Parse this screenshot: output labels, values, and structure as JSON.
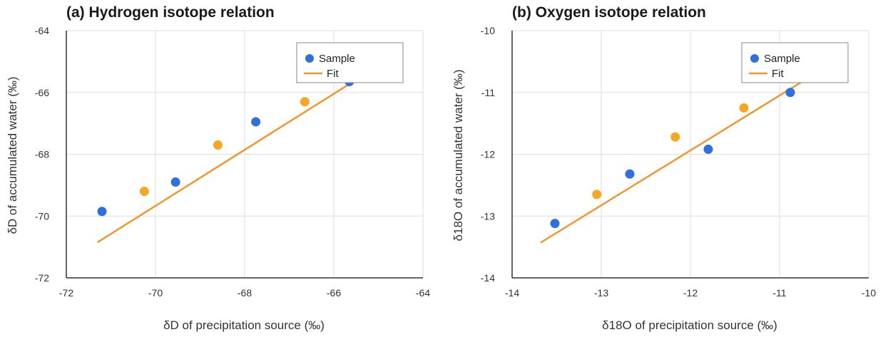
{
  "colors": {
    "sample_blue": "#2f6fde",
    "sample_orange": "#f5a623",
    "fit_line": "#f0962e",
    "grid": "#dddddd",
    "axis": "#333333"
  },
  "chart_data": [
    {
      "type": "scatter",
      "title": "(a) Hydrogen isotope relation",
      "xlabel": "δD of precipitation source (‰)",
      "ylabel": "δD of accumulated water (‰)",
      "xlim": [
        -72,
        -64
      ],
      "ylim": [
        -72,
        -64
      ],
      "xticks": [
        -72,
        -70,
        -68,
        -66,
        -64
      ],
      "yticks": [
        -72,
        -70,
        -68,
        -66,
        -64
      ],
      "grid": true,
      "legend_position": "top-right",
      "legend": [
        "Sample",
        "Fit"
      ],
      "series": [
        {
          "name": "Sample",
          "points": [
            {
              "x": -71.2,
              "y": -69.85,
              "color": "#2f6fde"
            },
            {
              "x": -70.25,
              "y": -69.2,
              "color": "#f5a623"
            },
            {
              "x": -69.55,
              "y": -68.9,
              "color": "#2f6fde"
            },
            {
              "x": -68.6,
              "y": -67.7,
              "color": "#f5a623"
            },
            {
              "x": -67.75,
              "y": -66.95,
              "color": "#2f6fde"
            },
            {
              "x": -66.65,
              "y": -66.3,
              "color": "#f5a623"
            },
            {
              "x": -65.65,
              "y": -65.65,
              "color": "#2f6fde"
            }
          ]
        },
        {
          "name": "Fit",
          "type": "line",
          "x": [
            -71.3,
            -65.4
          ],
          "y": [
            -70.85,
            -65.5
          ]
        }
      ]
    },
    {
      "type": "scatter",
      "title": "(b) Oxygen isotope relation",
      "xlabel": "δ18O of precipitation source (‰)",
      "ylabel": "δ18O of accumulated water (‰)",
      "xlim": [
        -14,
        -10
      ],
      "ylim": [
        -14,
        -10
      ],
      "xticks": [
        -14,
        -13,
        -12,
        -11,
        -10
      ],
      "yticks": [
        -14,
        -13,
        -12,
        -11,
        -10
      ],
      "grid": true,
      "legend_position": "top-right",
      "legend": [
        "Sample",
        "Fit"
      ],
      "series": [
        {
          "name": "Sample",
          "points": [
            {
              "x": -13.52,
              "y": -13.12,
              "color": "#2f6fde"
            },
            {
              "x": -13.05,
              "y": -12.65,
              "color": "#f5a623"
            },
            {
              "x": -12.68,
              "y": -12.32,
              "color": "#2f6fde"
            },
            {
              "x": -12.17,
              "y": -11.72,
              "color": "#f5a623"
            },
            {
              "x": -11.8,
              "y": -11.92,
              "color": "#2f6fde"
            },
            {
              "x": -11.4,
              "y": -11.25,
              "color": "#f5a623"
            },
            {
              "x": -10.88,
              "y": -11.0,
              "color": "#2f6fde"
            }
          ]
        },
        {
          "name": "Fit",
          "type": "line",
          "x": [
            -13.68,
            -10.55
          ],
          "y": [
            -13.43,
            -10.65
          ]
        }
      ]
    }
  ]
}
